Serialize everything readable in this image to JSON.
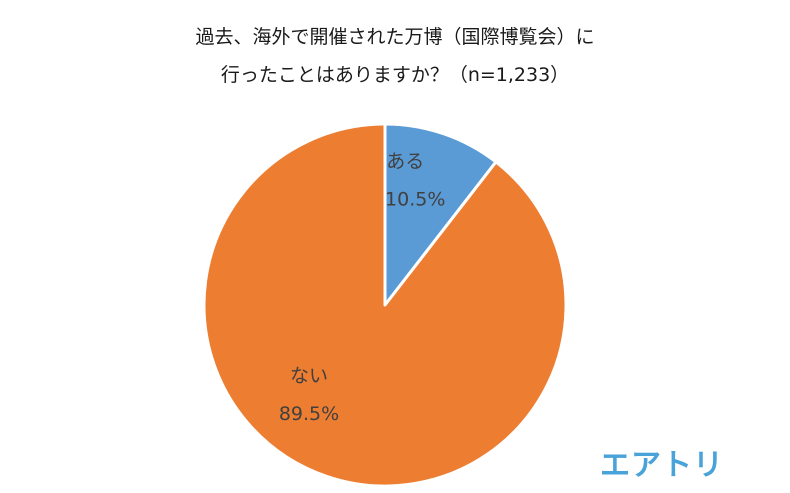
{
  "chart_data": {
    "type": "pie",
    "title_lines": [
      "過去、海外で開催された万博（国際博覧会）に",
      "行ったことはありますか？（n=1,233）"
    ],
    "slices": [
      {
        "label": "ある",
        "value": 10.5,
        "value_label": "10.5%",
        "color": "#5b9bd5"
      },
      {
        "label": "ない",
        "value": 89.5,
        "value_label": "89.5%",
        "color": "#ed7d31"
      }
    ]
  },
  "brand": {
    "logo_text": "エアトリ",
    "color": "#4aa3d8"
  }
}
